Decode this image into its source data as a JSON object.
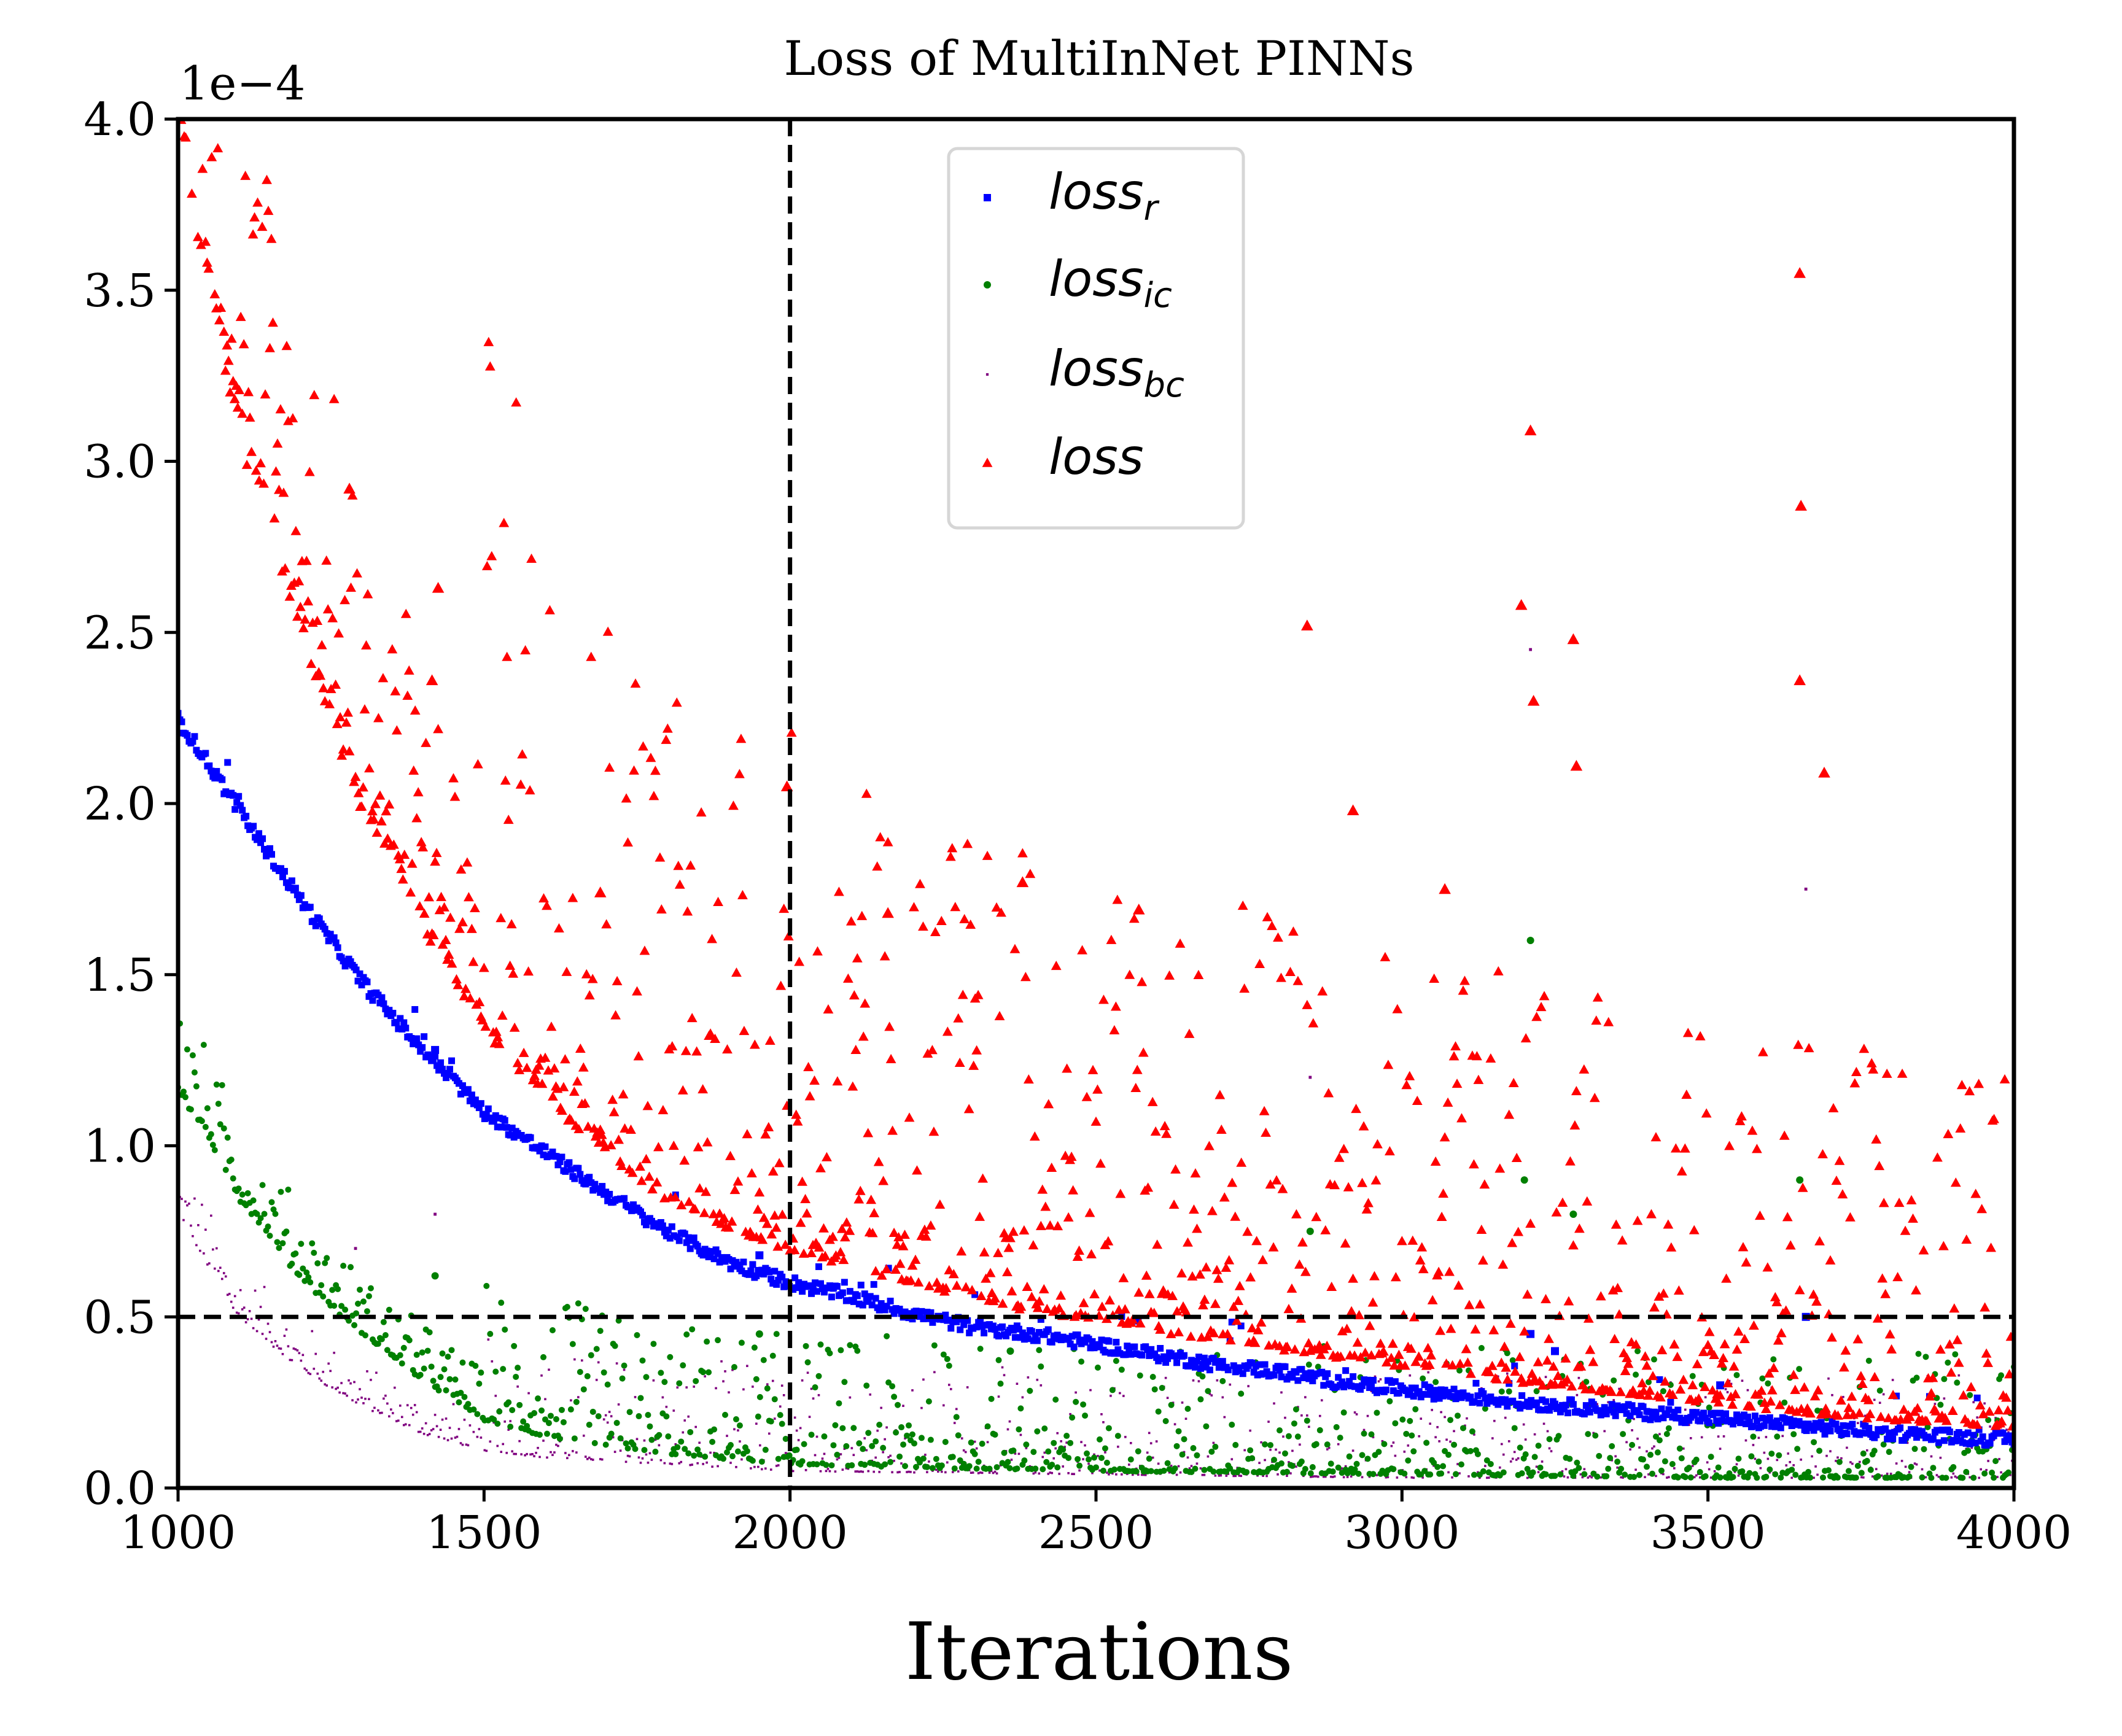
{
  "chart_data": {
    "type": "scatter",
    "title": "Loss of MultiInNet PINNs",
    "xlabel": "Iterations",
    "ylabel": "",
    "y_multiplier_label": "1e−4",
    "xlim": [
      1000,
      4000
    ],
    "ylim": [
      0,
      4.0
    ],
    "y_scale_factor": 0.0001,
    "xticks": [
      1000,
      1500,
      2000,
      2500,
      3000,
      3500,
      4000
    ],
    "xtick_labels": [
      "1000",
      "1500",
      "2000",
      "2500",
      "3000",
      "3500",
      "4000"
    ],
    "yticks": [
      0.0,
      0.5,
      1.0,
      1.5,
      2.0,
      2.5,
      3.0,
      3.5,
      4.0
    ],
    "ytick_labels": [
      "0.0",
      "0.5",
      "1.0",
      "1.5",
      "2.0",
      "2.5",
      "3.0",
      "3.5",
      "4.0"
    ],
    "grid": false,
    "legend_position": "upper-center",
    "reference_lines": [
      {
        "orientation": "vertical",
        "x": 2000,
        "style": "dashed",
        "color": "#000000"
      },
      {
        "orientation": "horizontal",
        "y": 0.5,
        "style": "dashed",
        "color": "#000000"
      }
    ],
    "series": [
      {
        "name": "loss",
        "name_sub": "r",
        "marker": "square",
        "color": "#0000ff",
        "x": [
          1000,
          1100,
          1200,
          1300,
          1400,
          1500,
          1600,
          1700,
          1800,
          1900,
          2000,
          2100,
          2200,
          2300,
          2400,
          2500,
          2600,
          2700,
          2800,
          2900,
          3000,
          3200,
          3400,
          3600,
          3800,
          4000
        ],
        "y": [
          2.25,
          1.98,
          1.72,
          1.48,
          1.28,
          1.1,
          0.98,
          0.86,
          0.75,
          0.66,
          0.6,
          0.56,
          0.51,
          0.47,
          0.45,
          0.42,
          0.39,
          0.36,
          0.34,
          0.31,
          0.29,
          0.25,
          0.22,
          0.19,
          0.16,
          0.14
        ],
        "spread": 0.02,
        "outliers": [
          [
            1420,
            1.28
          ],
          [
            1950,
            0.68
          ],
          [
            3210,
            0.45
          ],
          [
            3250,
            0.4
          ],
          [
            3520,
            0.3
          ],
          [
            3660,
            0.5
          ]
        ]
      },
      {
        "name": "loss",
        "name_sub": "ic",
        "marker": "circle",
        "color": "#008000",
        "x": [
          1000,
          1100,
          1200,
          1300,
          1400,
          1500,
          1600,
          1800,
          2000,
          2200,
          2500,
          3000,
          3500,
          4000
        ],
        "y": [
          1.18,
          0.85,
          0.62,
          0.45,
          0.32,
          0.2,
          0.15,
          0.1,
          0.07,
          0.06,
          0.05,
          0.04,
          0.03,
          0.03
        ],
        "spread": 0.12,
        "outliers": [
          [
            1420,
            0.62
          ],
          [
            1950,
            0.45
          ],
          [
            2360,
            0.4
          ],
          [
            3210,
            1.6
          ],
          [
            3200,
            0.9
          ],
          [
            3280,
            0.8
          ],
          [
            3650,
            0.9
          ],
          [
            2850,
            0.75
          ]
        ]
      },
      {
        "name": "loss",
        "name_sub": "bc",
        "marker": "point",
        "color": "#800080",
        "x": [
          1000,
          1100,
          1200,
          1300,
          1400,
          1500,
          1600,
          1800,
          2000,
          2500,
          3000,
          3500,
          4000
        ],
        "y": [
          0.8,
          0.5,
          0.35,
          0.24,
          0.16,
          0.11,
          0.09,
          0.07,
          0.05,
          0.04,
          0.03,
          0.03,
          0.03
        ],
        "spread": 0.1,
        "outliers": [
          [
            1420,
            0.8
          ],
          [
            1290,
            0.7
          ],
          [
            3210,
            2.45
          ],
          [
            3660,
            1.75
          ],
          [
            2850,
            1.2
          ]
        ]
      },
      {
        "name": "loss",
        "name_sub": "",
        "marker": "triangle",
        "color": "#ff0000",
        "x": [
          1000,
          1100,
          1200,
          1300,
          1400,
          1500,
          1600,
          1700,
          1800,
          1900,
          2000,
          2100,
          2200,
          2300,
          2400,
          2500,
          2600,
          2700,
          2800,
          2900,
          3000,
          3200,
          3400,
          3600,
          3800,
          4000
        ],
        "y": [
          4.0,
          3.1,
          2.5,
          2.0,
          1.65,
          1.35,
          1.15,
          0.98,
          0.85,
          0.76,
          0.7,
          0.64,
          0.6,
          0.56,
          0.52,
          0.49,
          0.46,
          0.43,
          0.41,
          0.38,
          0.36,
          0.31,
          0.27,
          0.23,
          0.2,
          0.18
        ],
        "spread": 0.3,
        "outliers": [
          [
            1280,
            2.92
          ],
          [
            1425,
            2.63
          ],
          [
            1415,
            2.36
          ],
          [
            1690,
            1.74
          ],
          [
            1995,
            2.05
          ],
          [
            2160,
            1.68
          ],
          [
            2380,
            1.77
          ],
          [
            2570,
            1.69
          ],
          [
            2845,
            2.52
          ],
          [
            2920,
            1.98
          ],
          [
            3070,
            1.75
          ],
          [
            3195,
            2.58
          ],
          [
            3210,
            3.09
          ],
          [
            3215,
            2.3
          ],
          [
            3280,
            2.48
          ],
          [
            3650,
            3.55
          ],
          [
            3652,
            2.87
          ],
          [
            3650,
            2.36
          ],
          [
            3690,
            2.09
          ],
          [
            3285,
            2.11
          ]
        ]
      }
    ]
  }
}
